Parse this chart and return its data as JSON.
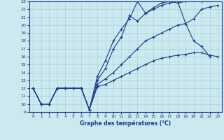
{
  "xlabel": "Graphe des températures (°C)",
  "xlim": [
    -0.5,
    23.5
  ],
  "ylim": [
    9,
    23
  ],
  "yticks": [
    9,
    10,
    11,
    12,
    13,
    14,
    15,
    16,
    17,
    18,
    19,
    20,
    21,
    22,
    23
  ],
  "xticks": [
    0,
    1,
    2,
    3,
    4,
    5,
    6,
    7,
    8,
    9,
    10,
    11,
    12,
    13,
    14,
    15,
    16,
    17,
    18,
    19,
    20,
    21,
    22,
    23
  ],
  "bg_color": "#cce9f0",
  "line_color": "#1a3a8c",
  "grid_color": "#aad0dd",
  "series": [
    {
      "x": [
        0,
        1,
        2,
        3,
        4,
        5,
        6,
        7,
        8,
        9,
        10,
        11,
        12,
        13,
        14,
        15,
        16,
        17,
        18,
        19,
        20,
        21,
        22,
        23
      ],
      "y": [
        12,
        10,
        10,
        12,
        12,
        12,
        12,
        9.3,
        12.2,
        12.5,
        13.0,
        13.5,
        14.0,
        14.5,
        15.0,
        15.5,
        15.8,
        16.0,
        16.2,
        16.3,
        16.5,
        16.5,
        16.2,
        16.0
      ]
    },
    {
      "x": [
        0,
        1,
        2,
        3,
        4,
        5,
        6,
        7,
        8,
        9,
        10,
        11,
        12,
        13,
        14,
        15,
        16,
        17,
        18,
        19,
        20,
        21,
        22,
        23
      ],
      "y": [
        12,
        10,
        10,
        12,
        12,
        12,
        12,
        9.3,
        12.5,
        13.2,
        14.0,
        15.0,
        16.0,
        17.0,
        18.0,
        18.5,
        19.0,
        19.5,
        20.0,
        20.2,
        20.8,
        22.0,
        22.3,
        22.5
      ]
    },
    {
      "x": [
        0,
        1,
        2,
        3,
        4,
        5,
        6,
        7,
        8,
        9,
        10,
        11,
        12,
        13,
        14,
        15,
        16,
        17,
        18,
        19,
        20,
        21,
        22,
        23
      ],
      "y": [
        12,
        10,
        10,
        12,
        12,
        12,
        12,
        9.3,
        13.0,
        14.5,
        17.0,
        18.5,
        21.2,
        20.5,
        21.5,
        22.0,
        22.5,
        22.8,
        23.0,
        20.2,
        18.0,
        17.3,
        16.0,
        null
      ]
    },
    {
      "x": [
        0,
        1,
        2,
        3,
        4,
        5,
        6,
        7,
        8,
        9,
        10,
        11,
        12,
        13,
        14,
        15,
        16,
        17,
        18,
        19,
        20,
        21,
        22,
        23
      ],
      "y": [
        12,
        10,
        10,
        12,
        12,
        12,
        12,
        9.3,
        13.5,
        15.5,
        18.0,
        19.5,
        20.8,
        23.0,
        21.5,
        22.2,
        22.8,
        23.0,
        22.8,
        23.0,
        23.2,
        23.0,
        null,
        null
      ]
    }
  ]
}
